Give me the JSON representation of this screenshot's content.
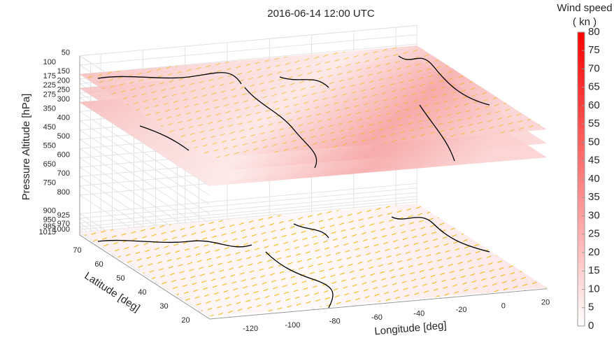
{
  "chart_data": {
    "type": "surface",
    "title": "2016-06-14 12:00 UTC",
    "xlabel": "Longitude [deg]",
    "ylabel": "Latitude [deg]",
    "zlabel": "Pressure Altitude [hPa]",
    "xlim": [
      -130,
      30
    ],
    "xticks": [
      -120,
      -100,
      -80,
      -60,
      -40,
      -20,
      0,
      20
    ],
    "ylim": [
      15,
      75
    ],
    "yticks": [
      20,
      30,
      40,
      50,
      60,
      70
    ],
    "zlim": [
      1015,
      50
    ],
    "zdir": "reverse",
    "zticks": [
      50,
      100,
      150,
      175,
      200,
      225,
      250,
      275,
      300,
      350,
      400,
      450,
      500,
      550,
      600,
      650,
      700,
      750,
      800,
      900,
      925,
      950,
      970,
      985,
      1000,
      1015
    ],
    "grid": true,
    "colorbar": {
      "title": [
        "Wind speed",
        "( kn )"
      ],
      "clim": [
        0,
        80
      ],
      "ticks": [
        0,
        5,
        10,
        15,
        20,
        25,
        30,
        35,
        40,
        45,
        50,
        55,
        60,
        65,
        70,
        75,
        80
      ],
      "colormap": [
        "#ffffff",
        "#ff0000"
      ]
    }
  }
}
